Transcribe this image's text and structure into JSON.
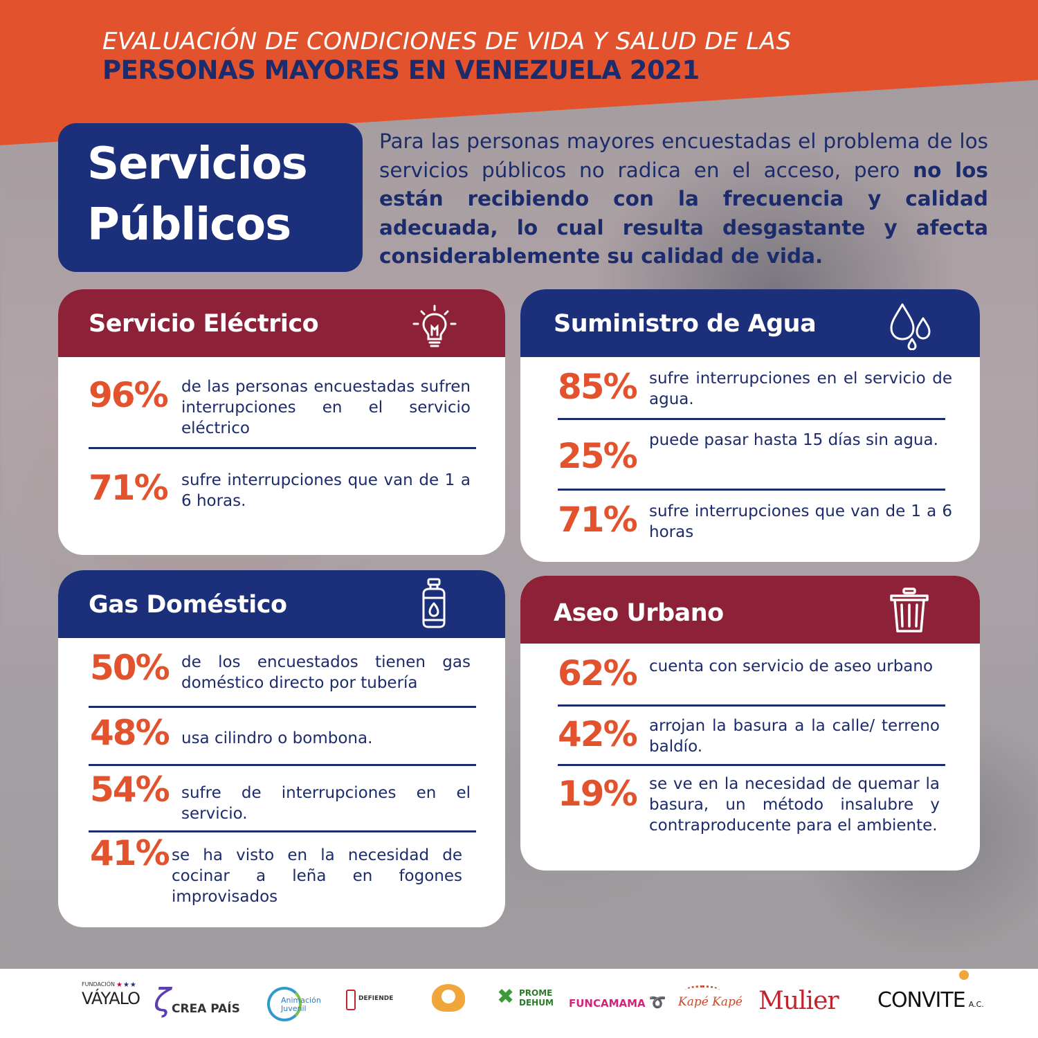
{
  "header": {
    "line1": "EVALUACIÓN DE CONDICIONES DE VIDA  Y SALUD DE LAS",
    "line2": "PERSONAS MAYORES EN VENEZUELA 2021"
  },
  "title": {
    "line1": "Servicios",
    "line2": "Públicos"
  },
  "intro": {
    "regular": "Para las personas mayores encuestadas el problema de los servicios públicos no radica en el acceso, pero ",
    "bold": "no los están recibiendo con la frecuencia y calidad adecuada, lo cual resulta desgastante y afecta considerablemente su calidad de vida."
  },
  "cards": {
    "electric": {
      "title": "Servicio Eléctrico",
      "icon": "lightbulb-icon",
      "stats": [
        {
          "pct": "96%",
          "text": "de las personas encuestadas sufren interrupciones en el servicio eléctrico"
        },
        {
          "pct": "71%",
          "text": "sufre interrupciones que van de 1 a 6 horas."
        }
      ]
    },
    "water": {
      "title": "Suministro de Agua",
      "icon": "water-drops-icon",
      "stats": [
        {
          "pct": "85%",
          "text": "sufre interrupciones en el servicio de agua."
        },
        {
          "pct": "25%",
          "text": "puede pasar hasta 15 días sin agua."
        },
        {
          "pct": "71%",
          "text": "sufre interrupciones que van de 1 a 6 horas"
        }
      ]
    },
    "gas": {
      "title": "Gas Doméstico",
      "icon": "gas-cylinder-icon",
      "stats": [
        {
          "pct": "50%",
          "text": "de los encuestados tienen gas doméstico directo por tubería"
        },
        {
          "pct": "48%",
          "text": "usa cilindro o bombona."
        },
        {
          "pct": "54%",
          "text": "sufre de interrupciones en el servicio."
        },
        {
          "pct": "41%",
          "text": "se ha visto en la necesidad de cocinar a leña en fogones improvisados"
        }
      ]
    },
    "cleaning": {
      "title": "Aseo Urbano",
      "icon": "trash-can-icon",
      "stats": [
        {
          "pct": "62%",
          "text": "cuenta con servicio de aseo urbano"
        },
        {
          "pct": "42%",
          "text": "arrojan la basura a la calle/ terreno baldío."
        },
        {
          "pct": "19%",
          "text": "se ve en la necesidad de quemar la basura, un método insalubre y contraproducente para el ambiente."
        }
      ]
    }
  },
  "footer": {
    "logos": [
      {
        "name": "VÁYALO",
        "sub": "FUNDACIÓN"
      },
      {
        "name": "CREA PAÍS",
        "sub": ""
      },
      {
        "name": "Animación Juvenil",
        "sub": ""
      },
      {
        "name": "DEFIENDE",
        "sub": ""
      },
      {
        "name": "",
        "sub": ""
      },
      {
        "name": "PROME DEHUM",
        "sub": ""
      },
      {
        "name": "FUNCAMAMA",
        "sub": ""
      },
      {
        "name": "Kapé Kapé",
        "sub": ""
      },
      {
        "name": "Mulier",
        "sub": ""
      },
      {
        "name": "CONVITE",
        "sub": "A.C."
      }
    ]
  },
  "colors": {
    "orange": "#e2532d",
    "navy": "#1c2b6b",
    "blue": "#1c2f7a",
    "maroon": "#8c2137"
  }
}
